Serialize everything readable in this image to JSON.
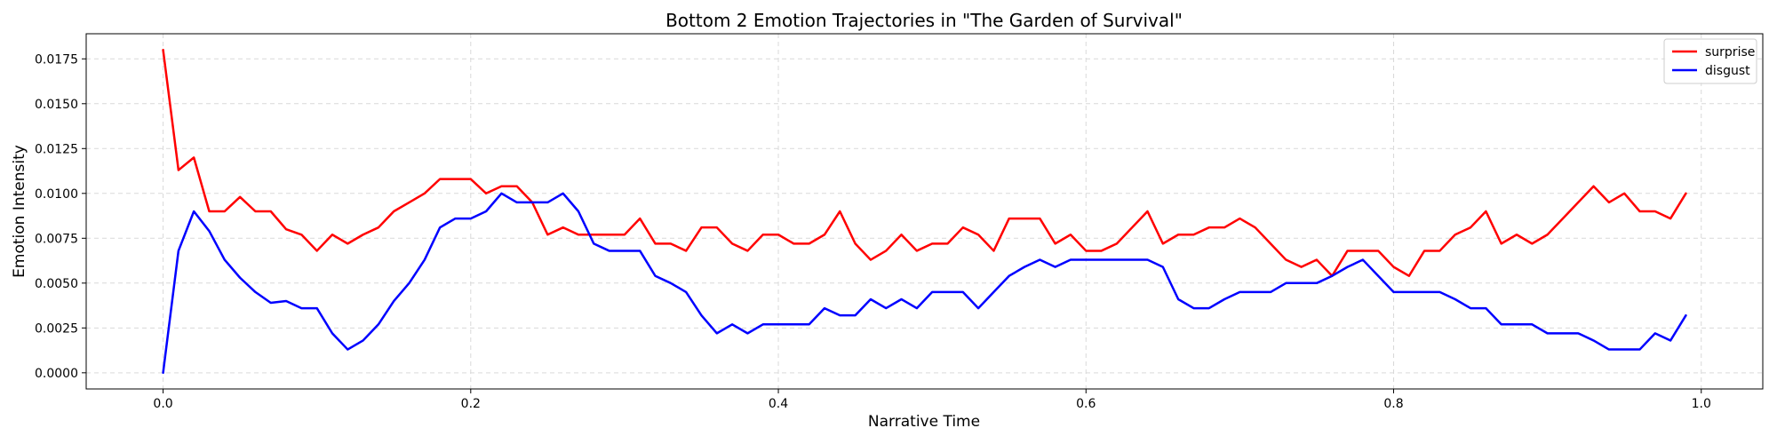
{
  "chart_data": {
    "type": "line",
    "title": "Bottom 2 Emotion Trajectories in \"The Garden of Survival\"",
    "xlabel": "Narrative Time",
    "ylabel": "Emotion Intensity",
    "xlim": [
      -0.05,
      1.04
    ],
    "ylim": [
      -0.0009,
      0.0189
    ],
    "xticks": [
      0.0,
      0.2,
      0.4,
      0.6,
      0.8,
      1.0
    ],
    "xtick_labels": [
      "0.0",
      "0.2",
      "0.4",
      "0.6",
      "0.8",
      "1.0"
    ],
    "yticks": [
      0.0,
      0.0025,
      0.005,
      0.0075,
      0.01,
      0.0125,
      0.015,
      0.0175
    ],
    "ytick_labels": [
      "0.0000",
      "0.0025",
      "0.0050",
      "0.0075",
      "0.0100",
      "0.0125",
      "0.0150",
      "0.0175"
    ],
    "grid": true,
    "legend_position": "top-right",
    "x": [
      0.0,
      0.01,
      0.02,
      0.03,
      0.04,
      0.05,
      0.06,
      0.07,
      0.08,
      0.09,
      0.1,
      0.11,
      0.12,
      0.13,
      0.14,
      0.15,
      0.16,
      0.17,
      0.18,
      0.19,
      0.2,
      0.21,
      0.22,
      0.23,
      0.24,
      0.25,
      0.26,
      0.27,
      0.28,
      0.29,
      0.3,
      0.31,
      0.32,
      0.33,
      0.34,
      0.35,
      0.36,
      0.37,
      0.38,
      0.39,
      0.4,
      0.41,
      0.42,
      0.43,
      0.44,
      0.45,
      0.46,
      0.47,
      0.48,
      0.49,
      0.5,
      0.51,
      0.52,
      0.53,
      0.54,
      0.55,
      0.56,
      0.57,
      0.58,
      0.59,
      0.6,
      0.61,
      0.62,
      0.63,
      0.64,
      0.65,
      0.66,
      0.67,
      0.68,
      0.69,
      0.7,
      0.71,
      0.72,
      0.73,
      0.74,
      0.75,
      0.76,
      0.77,
      0.78,
      0.79,
      0.8,
      0.81,
      0.82,
      0.83,
      0.84,
      0.85,
      0.86,
      0.87,
      0.88,
      0.89,
      0.9,
      0.91,
      0.92,
      0.93,
      0.94,
      0.95,
      0.96,
      0.97,
      0.98,
      0.99
    ],
    "series": [
      {
        "name": "surprise",
        "color": "#ff0000",
        "values": [
          0.018,
          0.0113,
          0.012,
          0.009,
          0.009,
          0.0098,
          0.009,
          0.009,
          0.008,
          0.0077,
          0.0068,
          0.0077,
          0.0072,
          0.0077,
          0.0081,
          0.009,
          0.0095,
          0.01,
          0.0108,
          0.0108,
          0.0108,
          0.01,
          0.0104,
          0.0104,
          0.0095,
          0.0077,
          0.0081,
          0.0077,
          0.0077,
          0.0077,
          0.0077,
          0.0086,
          0.0072,
          0.0072,
          0.0068,
          0.0081,
          0.0081,
          0.0072,
          0.0068,
          0.0077,
          0.0077,
          0.0072,
          0.0072,
          0.0077,
          0.009,
          0.0072,
          0.0063,
          0.0068,
          0.0077,
          0.0068,
          0.0072,
          0.0072,
          0.0081,
          0.0077,
          0.0068,
          0.0086,
          0.0086,
          0.0086,
          0.0072,
          0.0077,
          0.0068,
          0.0068,
          0.0072,
          0.0081,
          0.009,
          0.0072,
          0.0077,
          0.0077,
          0.0081,
          0.0081,
          0.0086,
          0.0081,
          0.0072,
          0.0063,
          0.0059,
          0.0063,
          0.0054,
          0.0068,
          0.0068,
          0.0068,
          0.0059,
          0.0054,
          0.0068,
          0.0068,
          0.0077,
          0.0081,
          0.009,
          0.0072,
          0.0077,
          0.0072,
          0.0077,
          0.0086,
          0.0095,
          0.0104,
          0.0095,
          0.01,
          0.009,
          0.009,
          0.0086,
          0.01
        ]
      },
      {
        "name": "disgust",
        "color": "#0000ff",
        "values": [
          0.0,
          0.0068,
          0.009,
          0.0079,
          0.0063,
          0.0053,
          0.0045,
          0.0039,
          0.004,
          0.0036,
          0.0036,
          0.0022,
          0.0013,
          0.0018,
          0.0027,
          0.004,
          0.005,
          0.0063,
          0.0081,
          0.0086,
          0.0086,
          0.009,
          0.01,
          0.0095,
          0.0095,
          0.0095,
          0.01,
          0.009,
          0.0072,
          0.0068,
          0.0068,
          0.0068,
          0.0054,
          0.005,
          0.0045,
          0.0032,
          0.0022,
          0.0027,
          0.0022,
          0.0027,
          0.0027,
          0.0027,
          0.0027,
          0.0036,
          0.0032,
          0.0032,
          0.0041,
          0.0036,
          0.0041,
          0.0036,
          0.0045,
          0.0045,
          0.0045,
          0.0036,
          0.0045,
          0.0054,
          0.0059,
          0.0063,
          0.0059,
          0.0063,
          0.0063,
          0.0063,
          0.0063,
          0.0063,
          0.0063,
          0.0059,
          0.0041,
          0.0036,
          0.0036,
          0.0041,
          0.0045,
          0.0045,
          0.0045,
          0.005,
          0.005,
          0.005,
          0.0054,
          0.0059,
          0.0063,
          0.0054,
          0.0045,
          0.0045,
          0.0045,
          0.0045,
          0.0041,
          0.0036,
          0.0036,
          0.0027,
          0.0027,
          0.0027,
          0.0022,
          0.0022,
          0.0022,
          0.0018,
          0.0013,
          0.0013,
          0.0013,
          0.0022,
          0.0018,
          0.0032
        ]
      }
    ]
  }
}
